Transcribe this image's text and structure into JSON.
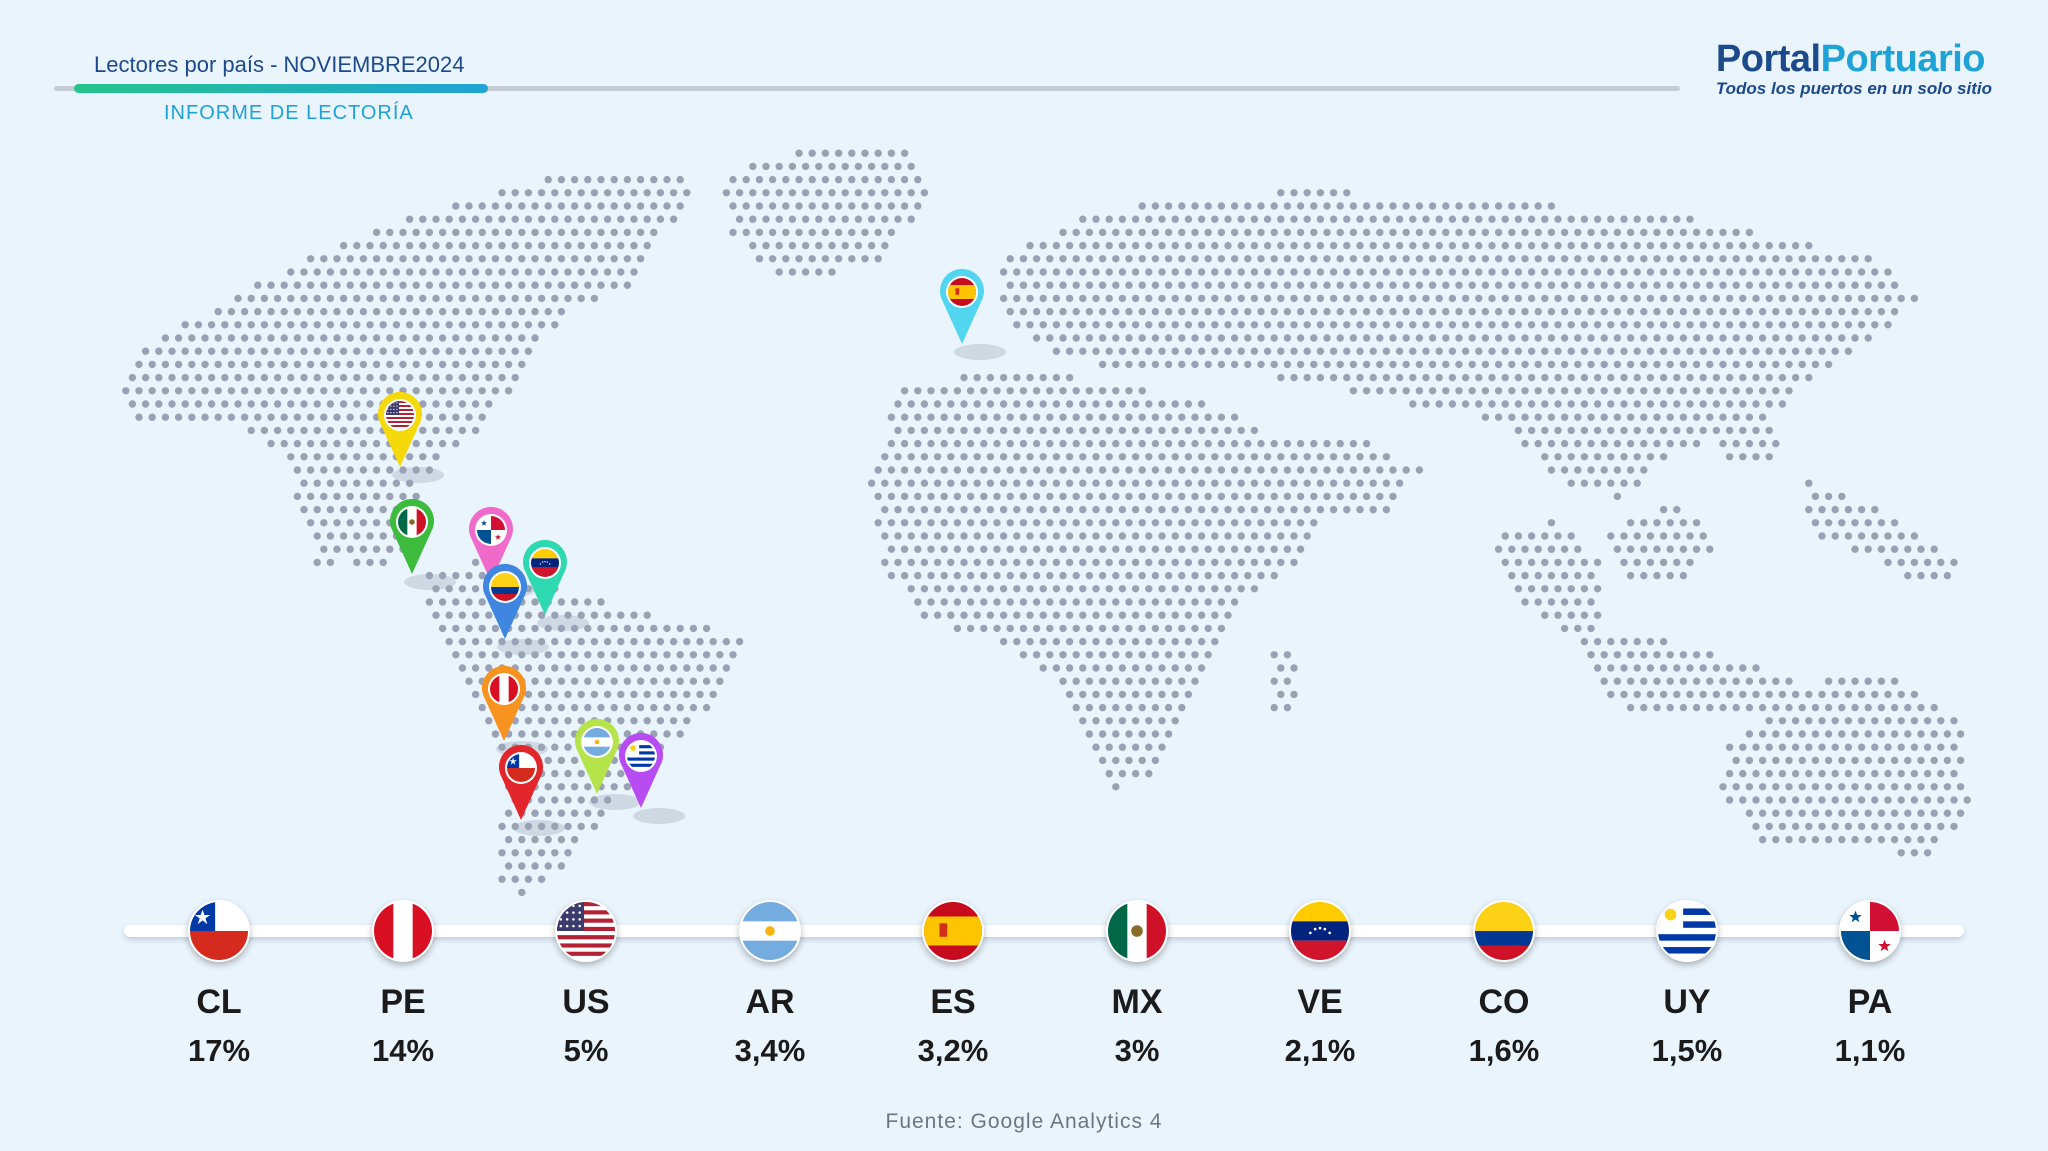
{
  "header": {
    "title": "Lectores por país - NOVIEMBRE2024",
    "subtitle": "INFORME DE LECTORÍA"
  },
  "logo": {
    "name_part1": "Portal",
    "name_part2": "Portuario",
    "tagline": "Todos los puertos en un solo sitio"
  },
  "colors": {
    "brand_dark": "#1c4a8a",
    "brand_light": "#1fa3d6",
    "accent_green": "#25c48c",
    "map_dots": "#9aa1b4",
    "background": "#eaf4fc"
  },
  "chart_data": {
    "type": "table",
    "categories": [
      "CL",
      "PE",
      "US",
      "AR",
      "ES",
      "MX",
      "VE",
      "CO",
      "UY",
      "PA"
    ],
    "labels": [
      "17%",
      "14%",
      "5%",
      "3,4%",
      "3,2%",
      "3%",
      "2,1%",
      "1,6%",
      "1,5%",
      "1,1%"
    ],
    "values": [
      17,
      14,
      5,
      3.4,
      3.2,
      3,
      2.1,
      1.6,
      1.5,
      1.1
    ],
    "unit": "%",
    "pin_colors": {
      "CL": "#e3262b",
      "PE": "#f7931e",
      "US": "#f5d90a",
      "AR": "#b5e34a",
      "ES": "#52d6f0",
      "MX": "#3dbb3d",
      "VE": "#2ed8b0",
      "CO": "#3f86e0",
      "UY": "#b64cf2",
      "PA": "#f06bc9"
    }
  },
  "source": "Fuente: Google Analytics 4"
}
